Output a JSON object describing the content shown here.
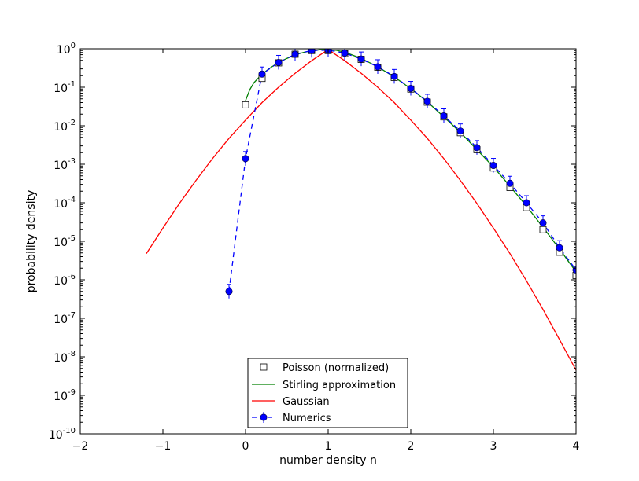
{
  "chart_data": {
    "type": "line",
    "title": "",
    "xlabel": "number density n",
    "ylabel": "probability density",
    "xlim": [
      -2,
      4
    ],
    "ylim_exponent": [
      -10,
      0
    ],
    "yscale": "log",
    "grid": false,
    "legend_position": "lower center",
    "x_ticks": [
      -2,
      -1,
      0,
      1,
      2,
      3,
      4
    ],
    "x_tick_labels": [
      "−2",
      "−1",
      "0",
      "1",
      "2",
      "3",
      "4"
    ],
    "y_tick_exponents": [
      0,
      -1,
      -2,
      -3,
      -4,
      -5,
      -6,
      -7,
      -8,
      -9,
      -10
    ],
    "y_tick_exponent_labels": [
      "0",
      "-1",
      "-2",
      "-3",
      "-4",
      "-5",
      "-6",
      "-7",
      "-8",
      "-9",
      "-10"
    ],
    "y_tick_base": "10",
    "series": [
      {
        "name": "Poisson (normalized)",
        "style": "open-square",
        "color": "#000000",
        "x": [
          0.0,
          0.2,
          0.4,
          0.6,
          0.8,
          1.0,
          1.2,
          1.4,
          1.6,
          1.8,
          2.0,
          2.2,
          2.4,
          2.6,
          2.8,
          3.0,
          3.2,
          3.4,
          3.6,
          3.8,
          4.0
        ],
        "y": [
          0.035,
          0.17,
          0.43,
          0.72,
          0.9,
          0.9,
          0.75,
          0.53,
          0.33,
          0.18,
          0.09,
          0.041,
          0.017,
          0.0066,
          0.0024,
          0.0008,
          0.00025,
          7.5e-05,
          2e-05,
          5.2e-06,
          1.3e-06
        ]
      },
      {
        "name": "Stirling approximation",
        "style": "line",
        "color": "#008000",
        "x": [
          0.0,
          0.05,
          0.1,
          0.2,
          0.3,
          0.4,
          0.5,
          0.6,
          0.7,
          0.8,
          0.9,
          1.0,
          1.1,
          1.2,
          1.4,
          1.6,
          1.8,
          2.0,
          2.2,
          2.4,
          2.6,
          2.8,
          3.0,
          3.2,
          3.4,
          3.6,
          3.8,
          4.0
        ],
        "y": [
          0.045,
          0.085,
          0.13,
          0.22,
          0.32,
          0.44,
          0.56,
          0.69,
          0.8,
          0.89,
          0.94,
          0.95,
          0.91,
          0.82,
          0.56,
          0.34,
          0.185,
          0.092,
          0.042,
          0.017,
          0.0067,
          0.0024,
          0.00085,
          0.00027,
          8.2e-05,
          2.3e-05,
          6.3e-06,
          1.6e-06
        ]
      },
      {
        "name": "Gaussian",
        "style": "line",
        "color": "#ff0000",
        "x": [
          -1.2,
          -1.0,
          -0.8,
          -0.6,
          -0.4,
          -0.2,
          0.0,
          0.2,
          0.4,
          0.6,
          0.8,
          1.0,
          1.2,
          1.4,
          1.6,
          1.8,
          2.0,
          2.2,
          2.4,
          2.6,
          2.8,
          3.0,
          3.2,
          3.4,
          3.6,
          3.8,
          4.0
        ],
        "y": [
          4.8e-06,
          2.2e-05,
          9.6e-05,
          0.00038,
          0.0014,
          0.0047,
          0.014,
          0.04,
          0.1,
          0.23,
          0.49,
          0.95,
          0.49,
          0.23,
          0.1,
          0.04,
          0.014,
          0.0047,
          0.0014,
          0.00038,
          9.6e-05,
          2.2e-05,
          4.8e-06,
          9.4e-07,
          1.7e-07,
          2.8e-08,
          4.5e-09
        ]
      },
      {
        "name": "Numerics",
        "style": "dashed-circle",
        "color": "#0000ff",
        "x": [
          -0.2,
          0.0,
          0.2,
          0.4,
          0.6,
          0.8,
          1.0,
          1.2,
          1.4,
          1.6,
          1.8,
          2.0,
          2.2,
          2.4,
          2.6,
          2.8,
          3.0,
          3.2,
          3.4,
          3.6,
          3.8,
          4.0
        ],
        "y": [
          5e-07,
          0.0014,
          0.22,
          0.44,
          0.72,
          0.9,
          0.92,
          0.77,
          0.54,
          0.34,
          0.19,
          0.093,
          0.043,
          0.018,
          0.0073,
          0.0027,
          0.00093,
          0.00032,
          0.0001,
          3e-05,
          6.8e-06,
          1.8e-06
        ]
      }
    ]
  }
}
